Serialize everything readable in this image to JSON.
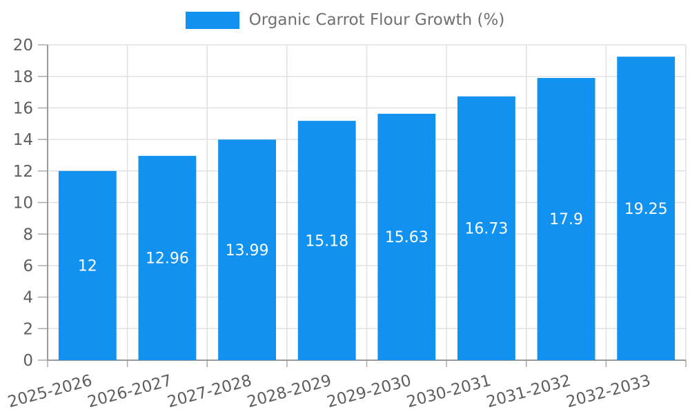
{
  "chart_data": {
    "type": "bar",
    "series_label": "Organic Carrot Flour Growth (%)",
    "categories": [
      "2025-2026",
      "2026-2027",
      "2027-2028",
      "2028-2029",
      "2029-2030",
      "2030-2031",
      "2031-2032",
      "2032-2033"
    ],
    "values": [
      12,
      12.96,
      13.99,
      15.18,
      15.63,
      16.73,
      17.9,
      19.25
    ],
    "value_labels": [
      "12",
      "12.96",
      "13.99",
      "15.18",
      "15.63",
      "16.73",
      "17.9",
      "19.25"
    ],
    "title": "",
    "xlabel": "",
    "ylabel": "",
    "ylim": [
      0,
      20
    ],
    "ytick_step": 2,
    "yticks": [
      0,
      2,
      4,
      6,
      8,
      10,
      12,
      14,
      16,
      18,
      20
    ],
    "grid": true,
    "legend_position": "top-center",
    "x_label_rotation_deg": -15,
    "colors": {
      "bar": "#1191f0",
      "grid": "#e0e0e0",
      "axis": "#999999",
      "tick": "#aaaaaa",
      "tick_label": "#5e5e5e",
      "legend_label": "#707070",
      "value_label": "#ffffff",
      "background": "#ffffff"
    }
  }
}
